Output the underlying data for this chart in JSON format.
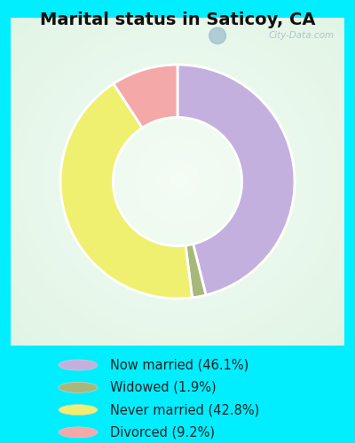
{
  "title": "Marital status in Saticoy, CA",
  "slices": [
    46.1,
    1.9,
    42.8,
    9.2
  ],
  "labels": [
    "Now married (46.1%)",
    "Widowed (1.9%)",
    "Never married (42.8%)",
    "Divorced (9.2%)"
  ],
  "colors": [
    "#c4b0de",
    "#a8b87a",
    "#f0f070",
    "#f4a8a8"
  ],
  "legend_colors": [
    "#c4b0de",
    "#a8b87a",
    "#f0f070",
    "#f4a8a8"
  ],
  "outer_bg": "#00eeff",
  "chart_panel_color": "#e8f5ee",
  "title_fontsize": 14,
  "legend_fontsize": 10.5,
  "start_angle": 90,
  "watermark": "City-Data.com"
}
